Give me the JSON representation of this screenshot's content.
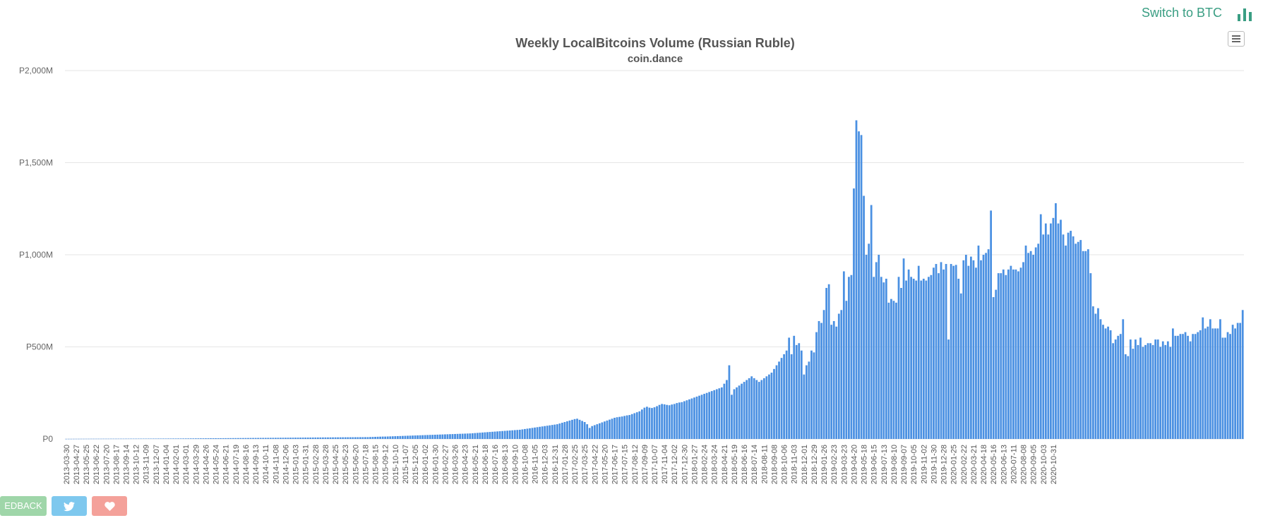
{
  "header": {
    "switch_label": "Switch to BTC"
  },
  "icons": {
    "switch": "bar-chart-icon",
    "menu": "hamburger-menu-icon"
  },
  "footer": {
    "feedback_label": "EDBACK",
    "twitter": "twitter-icon",
    "like": "heart-icon"
  },
  "colors": {
    "bar": "#4a90e2",
    "switch": "#3a9e83",
    "feedback": "#9fd6a9",
    "twitter": "#7ec8ee",
    "heart": "#f4a19a"
  },
  "chart_data": {
    "type": "bar",
    "title": "Weekly LocalBitcoins Volume (Russian Ruble)",
    "subtitle": "coin.dance",
    "ylabel": "",
    "ylim": [
      0,
      2000
    ],
    "y_ticks": [
      0,
      500,
      1000,
      1500,
      2000
    ],
    "y_tick_labels": [
      "P0",
      "P500M",
      "P1,000M",
      "P1,500M",
      "P2,000M"
    ],
    "x_tick_labels": [
      "2013-03-30",
      "2013-04-27",
      "2013-05-25",
      "2013-06-22",
      "2013-07-20",
      "2013-08-17",
      "2013-09-14",
      "2013-10-12",
      "2013-11-09",
      "2013-12-07",
      "2014-01-04",
      "2014-02-01",
      "2014-03-01",
      "2014-03-29",
      "2014-04-26",
      "2014-05-24",
      "2014-06-21",
      "2014-07-19",
      "2014-08-16",
      "2014-09-13",
      "2014-10-11",
      "2014-11-08",
      "2014-12-06",
      "2015-01-03",
      "2015-01-31",
      "2015-02-28",
      "2015-03-28",
      "2015-04-25",
      "2015-05-23",
      "2015-06-20",
      "2015-07-18",
      "2015-08-15",
      "2015-09-12",
      "2015-10-10",
      "2015-11-07",
      "2015-12-05",
      "2016-01-02",
      "2016-01-30",
      "2016-02-27",
      "2016-03-26",
      "2016-04-23",
      "2016-05-21",
      "2016-06-18",
      "2016-07-16",
      "2016-08-13",
      "2016-09-10",
      "2016-10-08",
      "2016-11-05",
      "2016-12-03",
      "2016-12-31",
      "2017-01-28",
      "2017-02-25",
      "2017-03-25",
      "2017-04-22",
      "2017-05-20",
      "2017-06-17",
      "2017-07-15",
      "2017-08-12",
      "2017-09-09",
      "2017-10-07",
      "2017-11-04",
      "2017-12-02",
      "2017-12-30",
      "2018-01-27",
      "2018-02-24",
      "2018-03-24",
      "2018-04-21",
      "2018-05-19",
      "2018-06-16",
      "2018-07-14",
      "2018-08-11",
      "2018-09-08",
      "2018-10-06",
      "2018-11-03",
      "2018-12-01",
      "2018-12-29",
      "2019-01-26",
      "2019-02-23",
      "2019-03-23",
      "2019-04-20",
      "2019-05-18",
      "2019-06-15",
      "2019-07-13",
      "2019-08-10",
      "2019-09-07",
      "2019-10-05",
      "2019-11-02",
      "2019-11-30",
      "2019-12-28",
      "2020-01-25",
      "2020-02-22",
      "2020-03-21",
      "2020-04-18",
      "2020-05-16",
      "2020-06-13",
      "2020-07-11",
      "2020-08-08",
      "2020-09-05",
      "2020-10-03",
      "2020-10-31"
    ],
    "x_tick_every": 4,
    "values_unit": "million RUB",
    "values": [
      0.5,
      0.6,
      0.6,
      0.7,
      0.8,
      0.8,
      0.9,
      0.9,
      1.0,
      1.0,
      1.1,
      1.1,
      1.2,
      1.2,
      1.2,
      1.3,
      1.3,
      1.3,
      1.4,
      1.4,
      1.4,
      1.5,
      1.5,
      1.5,
      1.6,
      1.6,
      1.7,
      1.7,
      1.7,
      1.8,
      1.8,
      1.9,
      1.9,
      2.0,
      2.0,
      2.1,
      2.1,
      2.2,
      2.2,
      2.3,
      2.3,
      2.4,
      2.4,
      2.5,
      2.5,
      2.6,
      2.6,
      2.7,
      2.8,
      2.9,
      3.0,
      3.1,
      3.2,
      3.3,
      3.4,
      3.5,
      3.6,
      3.7,
      3.8,
      3.9,
      4.0,
      4.0,
      4.1,
      4.2,
      4.3,
      4.4,
      4.5,
      4.6,
      4.7,
      4.8,
      4.9,
      5.0,
      5.1,
      5.2,
      5.3,
      5.4,
      5.5,
      5.6,
      5.7,
      5.8,
      5.9,
      6.0,
      6.1,
      6.2,
      6.3,
      6.4,
      6.5,
      6.6,
      6.7,
      6.8,
      6.9,
      7.0,
      7.1,
      7.2,
      7.3,
      7.4,
      7.5,
      7.6,
      7.7,
      7.8,
      7.9,
      8.0,
      8.1,
      8.2,
      8.3,
      8.4,
      8.5,
      8.6,
      8.7,
      8.8,
      8.9,
      9.0,
      9.1,
      9.2,
      9.3,
      9.4,
      9.5,
      9.6,
      9.7,
      9.8,
      9.9,
      10.0,
      10.5,
      11.0,
      11.5,
      12.0,
      12.5,
      13.0,
      13.0,
      13.5,
      14.0,
      14.5,
      15.0,
      15.5,
      16.0,
      16.5,
      17.0,
      17.5,
      18.0,
      18.5,
      19.0,
      19.5,
      20.0,
      20.5,
      21.0,
      21.5,
      22.0,
      22.5,
      23.0,
      23.5,
      24.0,
      24.5,
      25.0,
      25.5,
      26.0,
      26.5,
      27.0,
      27.5,
      28.0,
      28.5,
      29.0,
      29.5,
      30.0,
      31.0,
      32.0,
      33.0,
      34.0,
      35.0,
      36.0,
      37.0,
      38.0,
      39.0,
      40.0,
      41.0,
      42.0,
      43.0,
      44.0,
      45.0,
      46.0,
      47.0,
      48.0,
      49.0,
      50.0,
      52.0,
      54.0,
      56.0,
      58.0,
      60.0,
      62.0,
      64.0,
      66.0,
      68.0,
      70.0,
      72.0,
      74.0,
      76.0,
      78.0,
      80.0,
      84.0,
      88.0,
      92.0,
      96.0,
      100.0,
      104.0,
      108.0,
      110.0,
      104.0,
      98.0,
      92.0,
      80.0,
      60.0,
      70.0,
      75.0,
      80.0,
      85.0,
      90.0,
      95.0,
      100.0,
      105.0,
      110.0,
      115.0,
      118.0,
      120.0,
      122.0,
      125.0,
      128.0,
      130.0,
      135.0,
      140.0,
      145.0,
      150.0,
      160.0,
      170.0,
      175.0,
      170.0,
      168.0,
      172.0,
      178.0,
      185.0,
      190.0,
      188.0,
      185.0,
      183.0,
      187.0,
      190.0,
      195.0,
      198.0,
      200.0,
      205.0,
      210.0,
      215.0,
      220.0,
      225.0,
      230.0,
      235.0,
      240.0,
      245.0,
      250.0,
      255.0,
      260.0,
      265.0,
      270.0,
      275.0,
      280.0,
      300.0,
      320.0,
      400.0,
      240.0,
      270.0,
      280.0,
      290.0,
      300.0,
      310.0,
      320.0,
      330.0,
      340.0,
      330.0,
      320.0,
      310.0,
      320.0,
      330.0,
      340.0,
      350.0,
      360.0,
      380.0,
      400.0,
      420.0,
      440.0,
      460.0,
      480.0,
      550.0,
      460.0,
      560.0,
      510.0,
      520.0,
      480.0,
      350.0,
      400.0,
      420.0,
      480.0,
      470.0,
      580.0,
      640.0,
      630.0,
      700.0,
      820.0,
      840.0,
      620.0,
      640.0,
      610.0,
      680.0,
      700.0,
      910.0,
      750.0,
      880.0,
      890.0,
      1360.0,
      1730.0,
      1670.0,
      1650.0,
      1320.0,
      1000.0,
      1060.0,
      1270.0,
      880.0,
      960.0,
      1000.0,
      880.0,
      850.0,
      870.0,
      740.0,
      760.0,
      750.0,
      740.0,
      880.0,
      820.0,
      980.0,
      860.0,
      920.0,
      880.0,
      870.0,
      860.0,
      940.0,
      860.0,
      870.0,
      860.0,
      880.0,
      890.0,
      930.0,
      950.0,
      900.0,
      960.0,
      920.0,
      950.0,
      540.0,
      950.0,
      940.0,
      945.0,
      870.0,
      790.0,
      970.0,
      1000.0,
      940.0,
      990.0,
      970.0,
      930.0,
      1050.0,
      970.0,
      1000.0,
      1010.0,
      1030.0,
      1240.0,
      770.0,
      810.0,
      900.0,
      900.0,
      920.0,
      890.0,
      920.0,
      940.0,
      920.0,
      920.0,
      910.0,
      930.0,
      960.0,
      1050.0,
      1010.0,
      1020.0,
      1000.0,
      1040.0,
      1060.0,
      1220.0,
      1110.0,
      1170.0,
      1110.0,
      1170.0,
      1200.0,
      1280.0,
      1170.0,
      1190.0,
      1110.0,
      1050.0,
      1120.0,
      1130.0,
      1100.0,
      1060.0,
      1070.0,
      1080.0,
      1020.0,
      1020.0,
      1030.0,
      900.0,
      720.0,
      680.0,
      710.0,
      650.0,
      620.0,
      600.0,
      610.0,
      590.0,
      520.0,
      540.0,
      560.0,
      570.0,
      650.0,
      460.0,
      450.0,
      540.0,
      490.0,
      540.0,
      510.0,
      550.0,
      500.0,
      510.0,
      520.0,
      520.0,
      510.0,
      540.0,
      540.0,
      500.0,
      530.0,
      510.0,
      530.0,
      500.0,
      600.0,
      560.0,
      560.0,
      570.0,
      570.0,
      580.0,
      560.0,
      530.0,
      570.0,
      570.0,
      580.0,
      590.0,
      660.0,
      600.0,
      610.0,
      650.0,
      600.0,
      600.0,
      600.0,
      650.0,
      550.0,
      550.0,
      580.0,
      570.0,
      620.0,
      600.0,
      630.0,
      630.0,
      700.0
    ]
  }
}
